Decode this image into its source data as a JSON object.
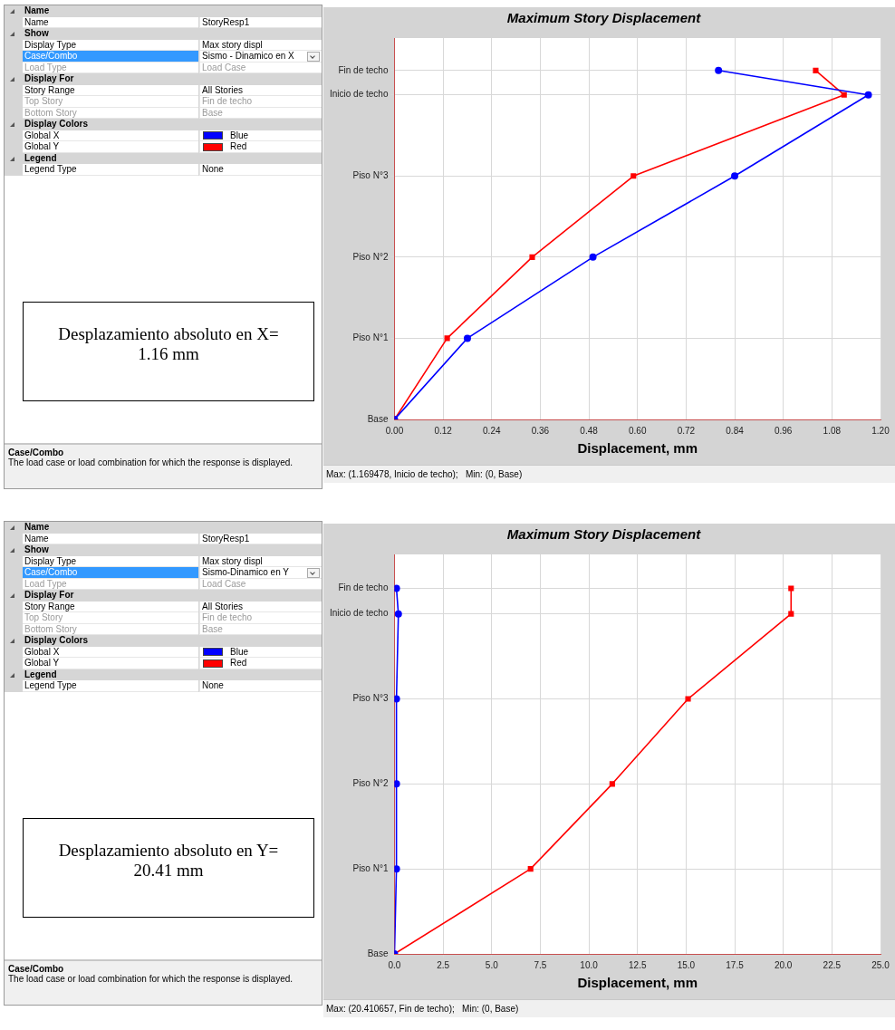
{
  "chart_data": [
    {
      "type": "other",
      "annotations": [
        "Name",
        "Name",
        "StoryResp1",
        "Show",
        "Display Type",
        "Max story displ",
        "Case/Combo",
        "Sismo - Dinamico en X",
        "Load Type",
        "Load Case",
        "Display For",
        "Story Range",
        "All Stories",
        "Top Story",
        "Fin de techo",
        "Bottom Story",
        "Base",
        "Display Colors",
        "Global X",
        "Blue",
        "Global Y",
        "Red",
        "Legend",
        "Legend Type",
        "None",
        "Desplazamiento absoluto en X= 1.16 mm",
        "Case/Combo",
        "The load case or load combination for which the response is displayed."
      ]
    },
    {
      "type": "line",
      "title": "Maximum Story Displacement",
      "xlabel": "Displacement, mm",
      "xlim": [
        0,
        1.2
      ],
      "xticks": [
        {
          "value": 0,
          "label": "0.00"
        },
        {
          "value": 0.12,
          "label": "0.12"
        },
        {
          "value": 0.24,
          "label": "0.24"
        },
        {
          "value": 0.36,
          "label": "0.36"
        },
        {
          "value": 0.48,
          "label": "0.48"
        },
        {
          "value": 0.6,
          "label": "0.60"
        },
        {
          "value": 0.72,
          "label": "0.72"
        },
        {
          "value": 0.84,
          "label": "0.84"
        },
        {
          "value": 0.96,
          "label": "0.96"
        },
        {
          "value": 1.08,
          "label": "1.08"
        },
        {
          "value": 1.2,
          "label": "1.20"
        }
      ],
      "ylim": [
        0,
        4.7
      ],
      "yticks": [
        {
          "value": 0,
          "label": "Base"
        },
        {
          "value": 1,
          "label": "Piso N°1"
        },
        {
          "value": 2,
          "label": "Piso N°2"
        },
        {
          "value": 3,
          "label": "Piso N°3"
        },
        {
          "value": 4,
          "label": "Inicio de techo"
        },
        {
          "value": 4.3,
          "label": "Fin de techo"
        }
      ],
      "grid": true,
      "line_style": "solid",
      "legend": false,
      "series": [
        {
          "color": "#0000ff",
          "marker": "circle",
          "x": [
            0,
            0.18,
            0.49,
            0.84,
            1.17,
            0.8
          ],
          "values": [
            0,
            1,
            2,
            3,
            4,
            4.3
          ]
        },
        {
          "color": "#ff0000",
          "marker": "square",
          "x": [
            0,
            0.13,
            0.34,
            0.59,
            1.11,
            1.04
          ],
          "values": [
            0,
            1,
            2,
            3,
            4,
            4.3
          ]
        }
      ],
      "annotations": [
        "Max: (1.169478, Inicio de techo);   Min: (0, Base)"
      ]
    },
    {
      "type": "other",
      "annotations": [
        "Name",
        "Name",
        "StoryResp1",
        "Show",
        "Display Type",
        "Max story displ",
        "Case/Combo",
        "Sismo-Dinamico en Y",
        "Load Type",
        "Load Case",
        "Display For",
        "Story Range",
        "All Stories",
        "Top Story",
        "Fin de techo",
        "Bottom Story",
        "Base",
        "Display Colors",
        "Global X",
        "Blue",
        "Global Y",
        "Red",
        "Legend",
        "Legend Type",
        "None",
        "Desplazamiento absoluto en Y= 20.41 mm",
        "Case/Combo",
        "The load case or load combination for which the response is displayed."
      ]
    },
    {
      "type": "line",
      "title": "Maximum Story Displacement",
      "xlabel": "Displacement, mm",
      "xlim": [
        0,
        25
      ],
      "xticks": [
        {
          "value": 0,
          "label": "0.0"
        },
        {
          "value": 2.5,
          "label": "2.5"
        },
        {
          "value": 5,
          "label": "5.0"
        },
        {
          "value": 7.5,
          "label": "7.5"
        },
        {
          "value": 10,
          "label": "10.0"
        },
        {
          "value": 12.5,
          "label": "12.5"
        },
        {
          "value": 15,
          "label": "15.0"
        },
        {
          "value": 17.5,
          "label": "17.5"
        },
        {
          "value": 20,
          "label": "20.0"
        },
        {
          "value": 22.5,
          "label": "22.5"
        },
        {
          "value": 25,
          "label": "25.0"
        }
      ],
      "ylim": [
        0,
        4.7
      ],
      "yticks": [
        {
          "value": 0,
          "label": "Base"
        },
        {
          "value": 1,
          "label": "Piso N°1"
        },
        {
          "value": 2,
          "label": "Piso N°2"
        },
        {
          "value": 3,
          "label": "Piso N°3"
        },
        {
          "value": 4,
          "label": "Inicio de techo"
        },
        {
          "value": 4.3,
          "label": "Fin de techo"
        }
      ],
      "grid": true,
      "line_style": "solid",
      "legend": false,
      "series": [
        {
          "color": "#0000ff",
          "marker": "circle",
          "x": [
            0,
            0.1,
            0.1,
            0.1,
            0.2,
            0.1
          ],
          "values": [
            0,
            1,
            2,
            3,
            4,
            4.3
          ]
        },
        {
          "color": "#ff0000",
          "marker": "square",
          "x": [
            0,
            7.0,
            11.2,
            15.1,
            20.4,
            20.4
          ],
          "values": [
            0,
            1,
            2,
            3,
            4,
            4.3
          ]
        }
      ],
      "annotations": [
        "Max: (20.410657, Fin de techo);   Min: (0, Base)"
      ]
    }
  ]
}
